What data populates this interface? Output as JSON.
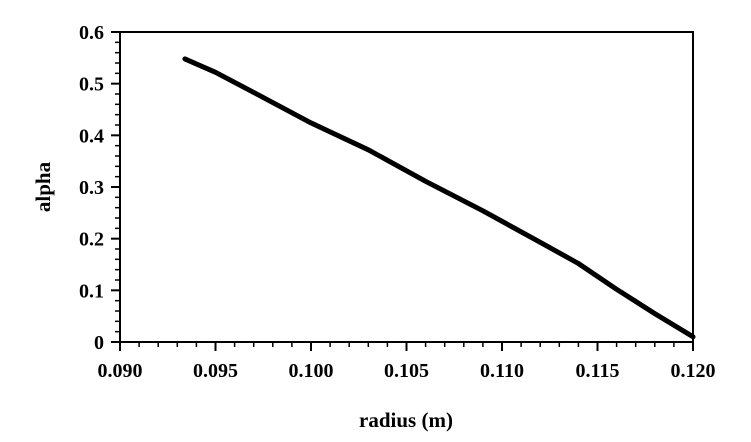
{
  "chart_data": {
    "type": "line",
    "xlabel": "radius (m)",
    "ylabel": "alpha",
    "xlim": [
      0.09,
      0.12
    ],
    "ylim": [
      0,
      0.6
    ],
    "x_ticks": [
      "0.090",
      "0.095",
      "0.100",
      "0.105",
      "0.110",
      "0.115",
      "0.120"
    ],
    "y_ticks": [
      "0",
      "0.1",
      "0.2",
      "0.3",
      "0.4",
      "0.5",
      "0.6"
    ],
    "grid": false,
    "line_color": "#000000",
    "series": [
      {
        "x": [
          0.0934,
          0.095,
          0.097,
          0.1,
          0.103,
          0.106,
          0.109,
          0.112,
          0.114,
          0.116,
          0.118,
          0.12
        ],
        "y": [
          0.548,
          0.522,
          0.483,
          0.424,
          0.372,
          0.311,
          0.254,
          0.193,
          0.152,
          0.102,
          0.055,
          0.01
        ]
      }
    ]
  }
}
